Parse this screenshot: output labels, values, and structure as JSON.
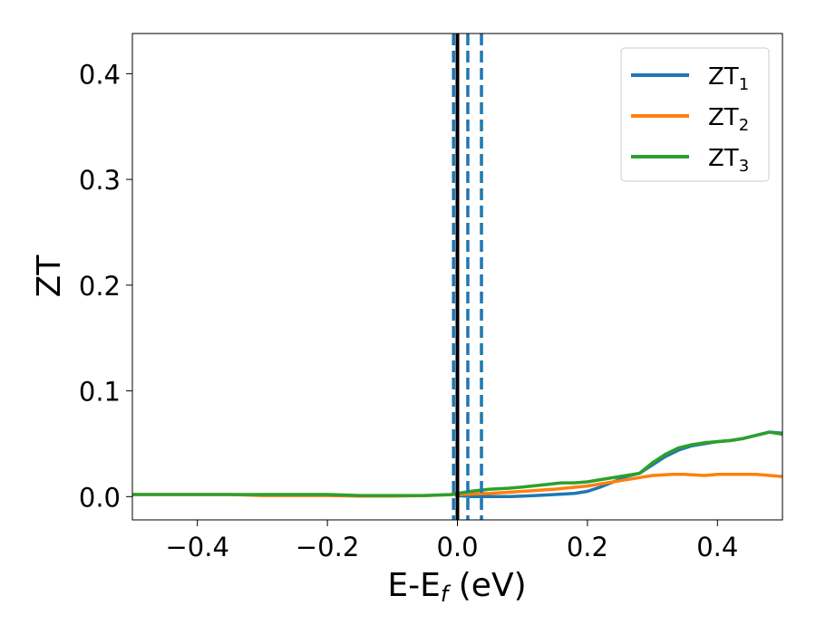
{
  "chart_data": {
    "type": "line",
    "title": "",
    "xlabel": {
      "main": "E-E",
      "sub": "f",
      "tail": " (eV)"
    },
    "ylabel": "ZT",
    "xlim": [
      -0.5,
      0.5
    ],
    "ylim": [
      -0.022,
      0.438
    ],
    "grid": false,
    "legend_position": "top-right",
    "x_ticks": [
      -0.4,
      -0.2,
      0.0,
      0.2,
      0.4
    ],
    "x_tick_labels": [
      "−0.4",
      "−0.2",
      "0.0",
      "0.2",
      "0.4"
    ],
    "y_ticks": [
      0.0,
      0.1,
      0.2,
      0.3,
      0.4
    ],
    "y_tick_labels": [
      "0.0",
      "0.1",
      "0.2",
      "0.3",
      "0.4"
    ],
    "vertical_lines": [
      {
        "x": 0.0,
        "style": "solid",
        "color": "#000000"
      },
      {
        "x": -0.006,
        "style": "dashed",
        "color": "#1f77b4"
      },
      {
        "x": 0.016,
        "style": "dashed",
        "color": "#1f77b4"
      },
      {
        "x": 0.037,
        "style": "dashed",
        "color": "#1f77b4"
      }
    ],
    "series": [
      {
        "name": {
          "main": "ZT",
          "sub": "1"
        },
        "color": "#1f77b4",
        "x": [
          0.0,
          0.02,
          0.05,
          0.08,
          0.1,
          0.12,
          0.15,
          0.18,
          0.2,
          0.22,
          0.24,
          0.26,
          0.28,
          0.3,
          0.32,
          0.34,
          0.36,
          0.38,
          0.4,
          0.42,
          0.44,
          0.46,
          0.48,
          0.5
        ],
        "y": [
          0.001,
          0.0,
          0.0,
          0.0,
          0.0005,
          0.001,
          0.002,
          0.003,
          0.005,
          0.009,
          0.014,
          0.019,
          0.022,
          0.03,
          0.038,
          0.044,
          0.048,
          0.05,
          0.052,
          0.053,
          0.055,
          0.058,
          0.061,
          0.06
        ]
      },
      {
        "name": {
          "main": "ZT",
          "sub": "2"
        },
        "color": "#ff7f0e",
        "x": [
          -0.5,
          -0.45,
          -0.4,
          -0.35,
          -0.3,
          -0.25,
          -0.2,
          -0.15,
          -0.1,
          -0.05,
          0.0,
          0.05,
          0.1,
          0.15,
          0.2,
          0.25,
          0.28,
          0.3,
          0.33,
          0.35,
          0.38,
          0.4,
          0.43,
          0.46,
          0.5
        ],
        "y": [
          0.002,
          0.002,
          0.002,
          0.002,
          0.001,
          0.001,
          0.001,
          0.0005,
          0.0005,
          0.001,
          0.002,
          0.003,
          0.005,
          0.007,
          0.01,
          0.015,
          0.018,
          0.02,
          0.021,
          0.021,
          0.02,
          0.021,
          0.021,
          0.021,
          0.019
        ]
      },
      {
        "name": {
          "main": "ZT",
          "sub": "3"
        },
        "color": "#2ca02c",
        "x": [
          -0.5,
          -0.45,
          -0.4,
          -0.35,
          -0.3,
          -0.25,
          -0.2,
          -0.15,
          -0.1,
          -0.05,
          -0.01,
          0.0,
          0.02,
          0.05,
          0.08,
          0.1,
          0.13,
          0.16,
          0.18,
          0.2,
          0.22,
          0.25,
          0.28,
          0.3,
          0.32,
          0.34,
          0.36,
          0.38,
          0.4,
          0.42,
          0.44,
          0.46,
          0.48,
          0.5
        ],
        "y": [
          0.002,
          0.002,
          0.002,
          0.002,
          0.002,
          0.002,
          0.002,
          0.001,
          0.001,
          0.001,
          0.002,
          0.003,
          0.005,
          0.007,
          0.008,
          0.009,
          0.011,
          0.013,
          0.013,
          0.014,
          0.016,
          0.019,
          0.022,
          0.032,
          0.04,
          0.046,
          0.049,
          0.051,
          0.052,
          0.053,
          0.055,
          0.058,
          0.061,
          0.059
        ]
      }
    ]
  }
}
